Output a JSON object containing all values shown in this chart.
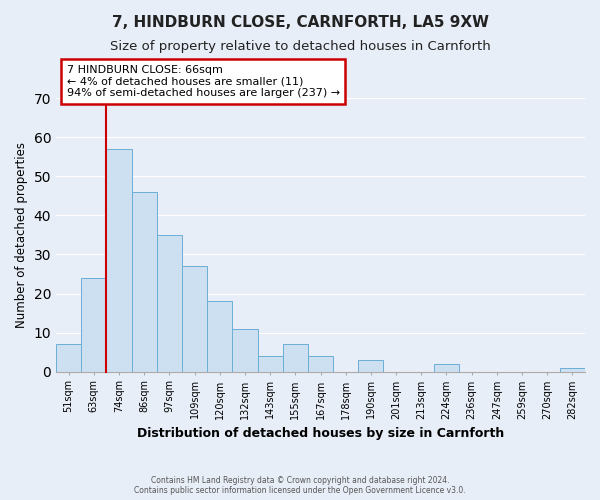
{
  "title": "7, HINDBURN CLOSE, CARNFORTH, LA5 9XW",
  "subtitle": "Size of property relative to detached houses in Carnforth",
  "xlabel": "Distribution of detached houses by size in Carnforth",
  "ylabel": "Number of detached properties",
  "bar_labels": [
    "51sqm",
    "63sqm",
    "74sqm",
    "86sqm",
    "97sqm",
    "109sqm",
    "120sqm",
    "132sqm",
    "143sqm",
    "155sqm",
    "167sqm",
    "178sqm",
    "190sqm",
    "201sqm",
    "213sqm",
    "224sqm",
    "236sqm",
    "247sqm",
    "259sqm",
    "270sqm",
    "282sqm"
  ],
  "bar_values": [
    7,
    24,
    57,
    46,
    35,
    27,
    18,
    11,
    4,
    7,
    4,
    0,
    3,
    0,
    0,
    2,
    0,
    0,
    0,
    0,
    1
  ],
  "bar_color": "#cde0f2",
  "bar_edge_color": "#6aaed6",
  "ylim": [
    0,
    70
  ],
  "yticks": [
    0,
    10,
    20,
    30,
    40,
    50,
    60,
    70
  ],
  "vline_x": 1.5,
  "vline_color": "#cc0000",
  "annotation_title": "7 HINDBURN CLOSE: 66sqm",
  "annotation_line1": "← 4% of detached houses are smaller (11)",
  "annotation_line2": "94% of semi-detached houses are larger (237) →",
  "annotation_box_color": "#cc0000",
  "footer_line1": "Contains HM Land Registry data © Crown copyright and database right 2024.",
  "footer_line2": "Contains public sector information licensed under the Open Government Licence v3.0.",
  "background_color": "#e8eef7",
  "plot_background": "#e8eef7",
  "grid_color": "#ffffff",
  "title_fontsize": 11,
  "subtitle_fontsize": 9.5
}
